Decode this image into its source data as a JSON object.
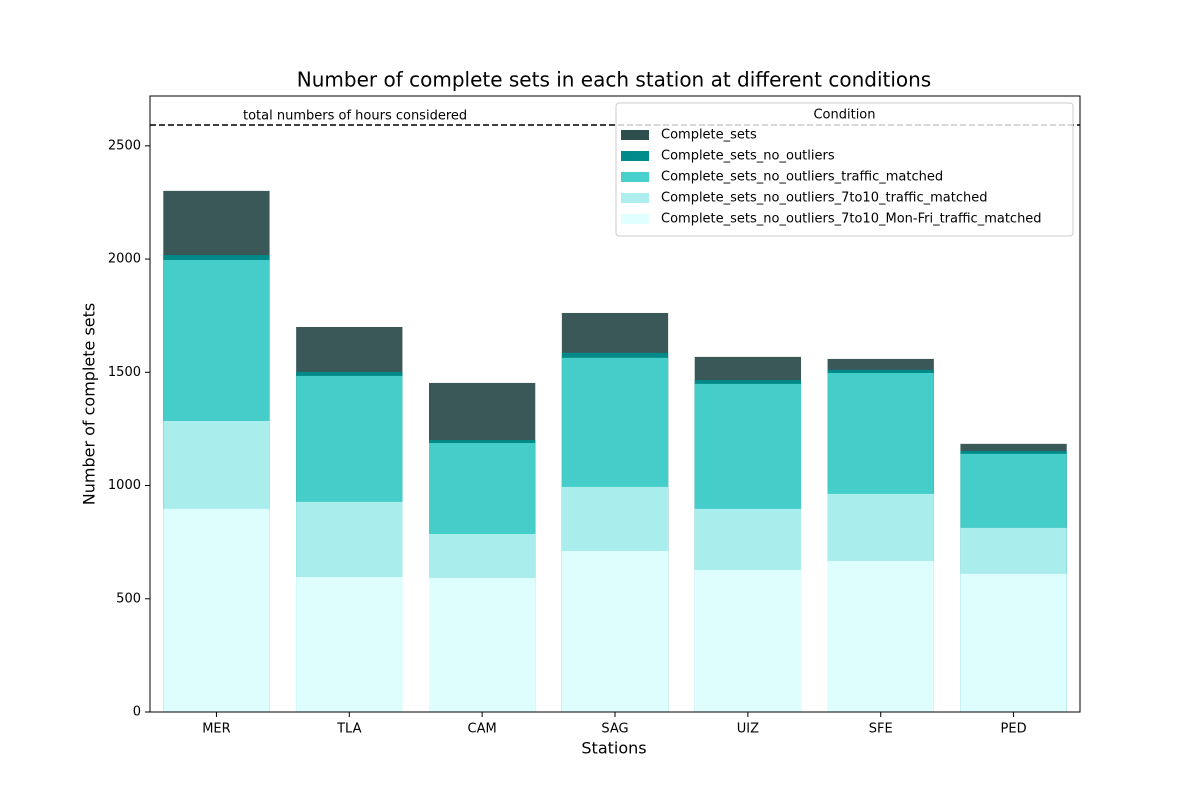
{
  "chart_data": {
    "type": "bar",
    "overlap": true,
    "title": "Number of complete sets in each station at different conditions",
    "xlabel": "Stations",
    "ylabel": "Number of complete sets",
    "categories": [
      "MER",
      "TLA",
      "CAM",
      "SAG",
      "UIZ",
      "SFE",
      "PED"
    ],
    "series": [
      {
        "name": "Complete_sets",
        "color": "#2f4f4f",
        "values": [
          2301,
          1700,
          1453,
          1762,
          1568,
          1559,
          1184
        ]
      },
      {
        "name": "Complete_sets_no_outliers",
        "color": "#008b8b",
        "values": [
          2018,
          1502,
          1201,
          1586,
          1466,
          1511,
          1153
        ]
      },
      {
        "name": "Complete_sets_no_outliers_traffic_matched",
        "color": "#48d1cc",
        "values": [
          1996,
          1484,
          1188,
          1564,
          1449,
          1497,
          1140
        ]
      },
      {
        "name": "Complete_sets_no_outliers_7to10_traffic_matched",
        "color": "#afeeee",
        "values": [
          1285,
          928,
          786,
          994,
          897,
          963,
          813
        ]
      },
      {
        "name": "Complete_sets_no_outliers_7to10_Mon-Fri_traffic_matched",
        "color": "#e0ffff",
        "values": [
          897,
          596,
          592,
          711,
          627,
          667,
          610
        ]
      }
    ],
    "ylim": [
      0,
      2720
    ],
    "yticks": [
      0,
      500,
      1000,
      1500,
      2000,
      2500
    ],
    "hline": {
      "value": 2592,
      "label": "total numbers of hours considered"
    },
    "legend": {
      "title": "Condition",
      "loc": "upper right"
    }
  }
}
